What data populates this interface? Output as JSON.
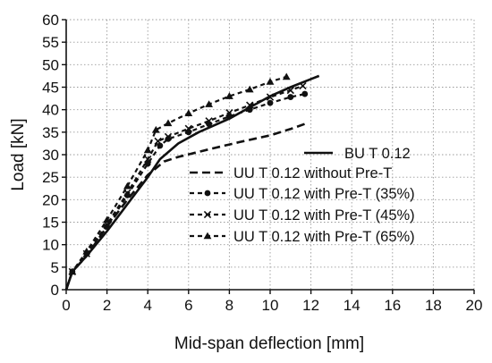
{
  "chart_data": {
    "type": "line",
    "xlabel": "Mid-span deflection [mm]",
    "ylabel": "Load [kN]",
    "xlim": [
      0,
      20
    ],
    "ylim": [
      0,
      60
    ],
    "xticks": [
      "0",
      "2",
      "4",
      "6",
      "8",
      "10",
      "12",
      "14",
      "16",
      "18",
      "20"
    ],
    "yticks": [
      "0",
      "5",
      "10",
      "15",
      "20",
      "25",
      "30",
      "35",
      "40",
      "45",
      "50",
      "55",
      "60"
    ],
    "grid": true,
    "legend_position": "right",
    "series": [
      {
        "name": "BU T 0.12",
        "line_style": "solid",
        "marker": "none",
        "x": [
          0,
          0.3,
          1,
          2,
          3,
          4,
          4.6,
          5.5,
          6.5,
          8,
          9,
          10,
          11,
          12,
          12.4
        ],
        "y": [
          0,
          4,
          7.5,
          13,
          19,
          25,
          29,
          32.5,
          35,
          38,
          40.5,
          43,
          45,
          46.8,
          47.5
        ]
      },
      {
        "name": "UU T 0.12 without Pre-T",
        "line_style": "dashed",
        "marker": "none",
        "x": [
          0,
          0.3,
          1,
          2,
          3,
          4,
          4.8,
          5.5,
          7,
          8.5,
          10,
          11,
          11.8
        ],
        "y": [
          0,
          4,
          7.5,
          14,
          20,
          25.5,
          28.5,
          29.5,
          31.2,
          32.8,
          34.3,
          35.7,
          37
        ]
      },
      {
        "name": "UU T 0.12 with Pre-T (35%)",
        "line_style": "dashed",
        "marker": "circle",
        "x": [
          0,
          0.3,
          1,
          2,
          3,
          4,
          4.6,
          5,
          6,
          7,
          8,
          9,
          10,
          11,
          11.7
        ],
        "y": [
          0,
          4,
          8,
          14,
          21,
          28,
          32,
          33.5,
          35,
          36.8,
          38.5,
          40,
          41.5,
          42.8,
          43.5
        ]
      },
      {
        "name": "UU T 0.12 with Pre-T (45%)",
        "line_style": "dashed",
        "marker": "x",
        "x": [
          0,
          0.3,
          1,
          2,
          3,
          4,
          4.5,
          5,
          6,
          7,
          8,
          9,
          10,
          11,
          11.6
        ],
        "y": [
          0,
          4,
          8,
          14.5,
          21.5,
          29,
          33,
          34,
          35.8,
          37.5,
          39.3,
          41,
          42.8,
          44.3,
          45.3
        ]
      },
      {
        "name": "UU T 0.12 with Pre-T (65%)",
        "line_style": "dashed",
        "marker": "triangle",
        "x": [
          0,
          0.3,
          1,
          2,
          3,
          4,
          4.4,
          5,
          6,
          7,
          8,
          9,
          10,
          10.8
        ],
        "y": [
          0,
          4,
          8.5,
          15.5,
          23,
          31,
          35.5,
          37,
          39.2,
          41.2,
          43,
          44.5,
          46.2,
          47.3
        ]
      }
    ]
  }
}
